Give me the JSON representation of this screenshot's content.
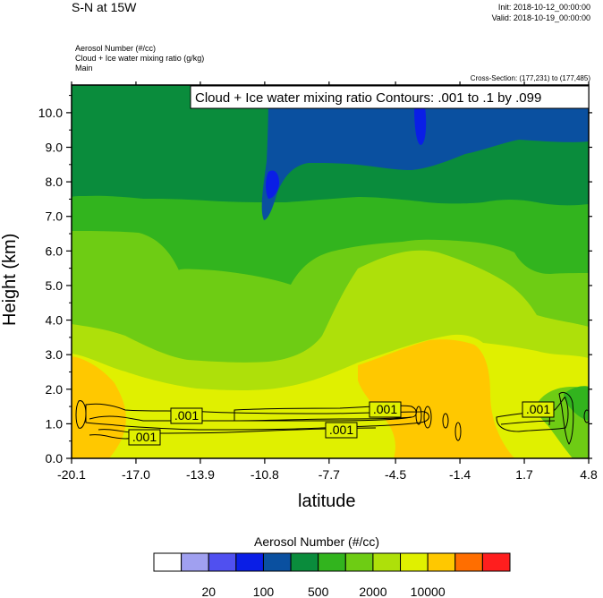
{
  "header": {
    "title": "S-N at 15W",
    "init": "Init: 2018-10-12_00:00:00",
    "valid": "Valid: 2018-10-19_00:00:00",
    "field1": "Aerosol Number   (#/cc)",
    "field2": "Cloud + Ice water mixing ratio   (g/kg)",
    "field3": "Main",
    "cross_section": "Cross-Section: (177,231) to (177,485)"
  },
  "chart_data": {
    "type": "heatmap",
    "title": "S-N at 15W",
    "xlabel": "latitude",
    "ylabel": "Height (km)",
    "xlim": [
      -20.1,
      4.8
    ],
    "ylim": [
      0,
      10.8
    ],
    "xticks": [
      "-20.1",
      "-17.0",
      "-13.9",
      "-10.8",
      "-7.7",
      "-4.5",
      "-1.4",
      "1.7",
      "4.8"
    ],
    "yticks": [
      "0.0",
      "1.0",
      "2.0",
      "3.0",
      "4.0",
      "5.0",
      "6.0",
      "7.0",
      "8.0",
      "9.0",
      "10.0"
    ],
    "contour_legend": "Cloud + Ice water mixing ratio Contours: .001 to .1 by .099",
    "contour_labels": [
      ".001",
      ".001",
      ".001",
      ".001",
      ".001"
    ],
    "colorbar": {
      "title": "Aerosol Number  (#/cc)",
      "tick_labels": [
        "20",
        "100",
        "500",
        "2000",
        "10000"
      ],
      "colors": [
        "#ffffff",
        "#a0a0f0",
        "#5050f0",
        "#0a1ee6",
        "#0a50a0",
        "#0a8c3c",
        "#32b41e",
        "#6ecc14",
        "#aee00a",
        "#e0f000",
        "#ffc800",
        "#ff6e00",
        "#ff1e1e"
      ]
    },
    "regions_by_color": [
      {
        "color": "#0a50a0",
        "description": "upper troposphere ~8.5-10.8 km"
      },
      {
        "color": "#0a8c3c",
        "description": "~7.5-9.5 km"
      },
      {
        "color": "#32b41e",
        "description": "~5.5-7.5 km"
      },
      {
        "color": "#6ecc14",
        "description": "~3-5.5 km"
      },
      {
        "color": "#aee00a",
        "description": "~2-3.5 km"
      },
      {
        "color": "#e0f000",
        "description": "boundary layer 0-2 km"
      },
      {
        "color": "#ffc800",
        "description": "near-surface maxima around -20 to -16 and -5 to 1"
      }
    ]
  }
}
